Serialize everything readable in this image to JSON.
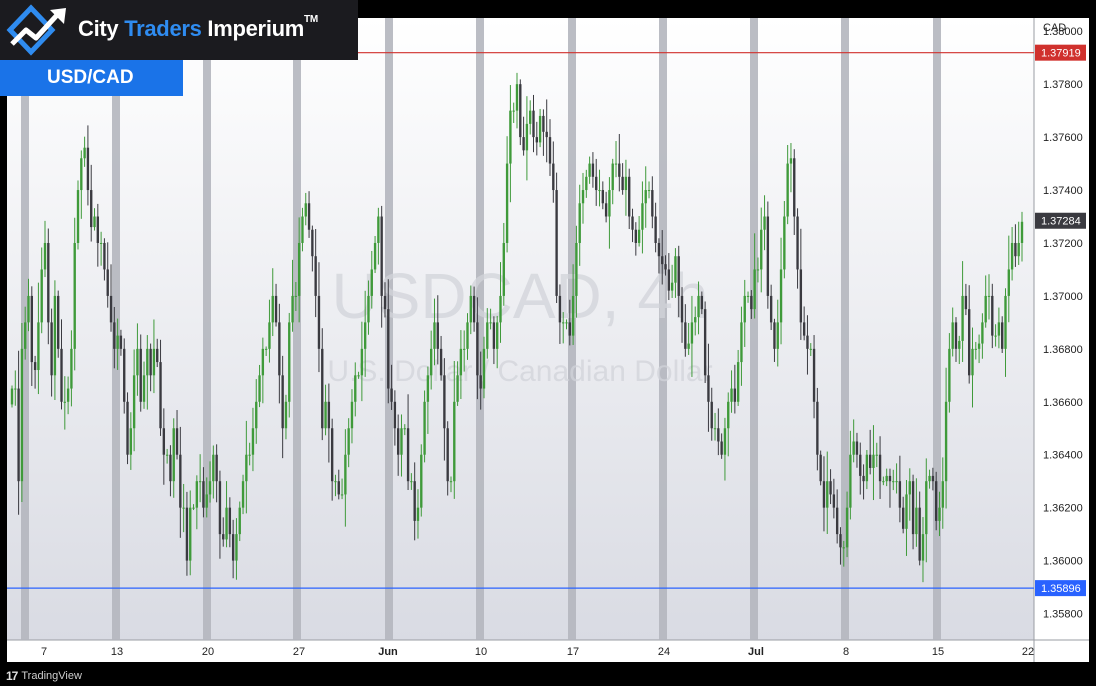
{
  "brand": {
    "part1": "City ",
    "part2": "Traders",
    "part3": " Imperium",
    "tm": "TM",
    "logo_icon": "trend-arrow-diamond-icon"
  },
  "pair_badge": "USD/CAD",
  "watermark": {
    "symbol": "USDCAD, 4h",
    "description": "U.S. Dollar / Canadian Dollar"
  },
  "footer": {
    "provider": "TradingView",
    "logo_glyph": "17"
  },
  "colors": {
    "up": "#3f9a3a",
    "down": "#3a3a40",
    "resistance": "#d0312d",
    "support": "#2962ff",
    "last_price_tag": "#3a3a40",
    "badge": "#1a73e8"
  },
  "chart_data": {
    "type": "candlestick",
    "currency": "CAD",
    "ylim": [
      1.357,
      1.3805
    ],
    "y_ticks": [
      "1.35800",
      "1.36000",
      "1.36200",
      "1.36400",
      "1.36600",
      "1.36800",
      "1.37000",
      "1.37200",
      "1.37400",
      "1.37600",
      "1.37800",
      "1.38000"
    ],
    "x_tick_labels": [
      "7",
      "13",
      "20",
      "27",
      "Jun",
      "10",
      "17",
      "24",
      "Jul",
      "8",
      "15",
      "22"
    ],
    "levels": [
      {
        "name": "resistance",
        "value": "1.37919"
      },
      {
        "name": "support",
        "value": "1.35896"
      }
    ],
    "last_price": "1.37284",
    "weekend_separators": 11,
    "closes": [
      1.3665,
      1.3665,
      1.363,
      1.368,
      1.369,
      1.37,
      1.3675,
      1.3672,
      1.369,
      1.371,
      1.372,
      1.369,
      1.367,
      1.37,
      1.368,
      1.366,
      1.366,
      1.3665,
      1.368,
      1.372,
      1.374,
      1.3752,
      1.3756,
      1.374,
      1.3726,
      1.373,
      1.372,
      1.372,
      1.371,
      1.37,
      1.369,
      1.368,
      1.3685,
      1.368,
      1.366,
      1.364,
      1.365,
      1.367,
      1.368,
      1.366,
      1.367,
      1.368,
      1.367,
      1.368,
      1.3675,
      1.365,
      1.364,
      1.364,
      1.363,
      1.365,
      1.364,
      1.362,
      1.362,
      1.36,
      1.362,
      1.362,
      1.363,
      1.363,
      1.362,
      1.3625,
      1.363,
      1.364,
      1.363,
      1.361,
      1.3608,
      1.362,
      1.361,
      1.36,
      1.361,
      1.362,
      1.363,
      1.364,
      1.364,
      1.365,
      1.366,
      1.367,
      1.368,
      1.368,
      1.369,
      1.37,
      1.369,
      1.367,
      1.365,
      1.366,
      1.369,
      1.37,
      1.37,
      1.372,
      1.373,
      1.3735,
      1.3725,
      1.3715,
      1.37,
      1.368,
      1.365,
      1.366,
      1.365,
      1.363,
      1.363,
      1.3625,
      1.3625,
      1.364,
      1.365,
      1.366,
      1.367,
      1.367,
      1.368,
      1.369,
      1.37,
      1.371,
      1.372,
      1.373,
      1.37,
      1.3695,
      1.3665,
      1.366,
      1.365,
      1.364,
      1.365,
      1.365,
      1.363,
      1.363,
      1.3615,
      1.362,
      1.364,
      1.366,
      1.367,
      1.368,
      1.369,
      1.368,
      1.367,
      1.365,
      1.363,
      1.363,
      1.366,
      1.367,
      1.368,
      1.368,
      1.369,
      1.37,
      1.369,
      1.367,
      1.3665,
      1.368,
      1.369,
      1.369,
      1.368,
      1.369,
      1.37,
      1.372,
      1.375,
      1.377,
      1.377,
      1.378,
      1.376,
      1.3755,
      1.3765,
      1.377,
      1.376,
      1.3758,
      1.3768,
      1.3762,
      1.376,
      1.375,
      1.374,
      1.37,
      1.369,
      1.369,
      1.369,
      1.3685,
      1.37,
      1.372,
      1.3735,
      1.374,
      1.3745,
      1.375,
      1.3745,
      1.374,
      1.374,
      1.3735,
      1.373,
      1.374,
      1.375,
      1.375,
      1.3745,
      1.374,
      1.3745,
      1.373,
      1.3725,
      1.372,
      1.3725,
      1.3735,
      1.374,
      1.374,
      1.373,
      1.372,
      1.3715,
      1.3712,
      1.371,
      1.3702,
      1.3705,
      1.3715,
      1.37,
      1.369,
      1.368,
      1.3682,
      1.369,
      1.3692,
      1.37,
      1.3695,
      1.367,
      1.366,
      1.365,
      1.365,
      1.3645,
      1.364,
      1.365,
      1.366,
      1.3665,
      1.366,
      1.3675,
      1.369,
      1.37,
      1.37,
      1.3695,
      1.371,
      1.371,
      1.3725,
      1.373,
      1.37,
      1.369,
      1.368,
      1.369,
      1.371,
      1.373,
      1.375,
      1.3752,
      1.373,
      1.371,
      1.369,
      1.3685,
      1.368,
      1.368,
      1.366,
      1.364,
      1.363,
      1.362,
      1.363,
      1.3625,
      1.362,
      1.361,
      1.3605,
      1.3605,
      1.362,
      1.364,
      1.3645,
      1.364,
      1.3632,
      1.363,
      1.364,
      1.3635,
      1.364,
      1.364,
      1.363,
      1.363,
      1.3632,
      1.363,
      1.363,
      1.363,
      1.362,
      1.3612,
      1.3625,
      1.363,
      1.361,
      1.362,
      1.36,
      1.361,
      1.363,
      1.3632,
      1.363,
      1.3615,
      1.362,
      1.363,
      1.366,
      1.368,
      1.369,
      1.368,
      1.3683,
      1.37,
      1.3695,
      1.367,
      1.368,
      1.368,
      1.3682,
      1.369,
      1.37,
      1.37,
      1.3685,
      1.3685,
      1.369,
      1.368,
      1.37,
      1.371,
      1.372,
      1.3715,
      1.372,
      1.3728
    ]
  }
}
